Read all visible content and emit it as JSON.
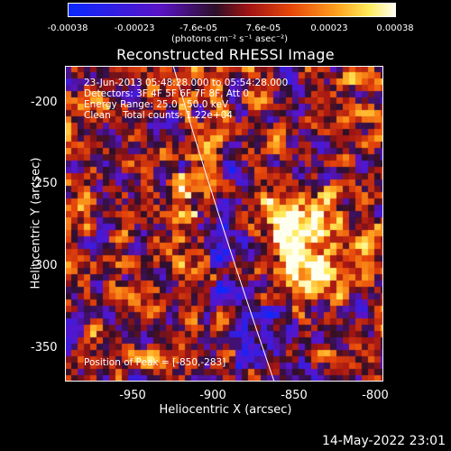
{
  "colorbar": {
    "ticks": [
      "-0.00038",
      "-0.00023",
      "-7.6e-05",
      "7.6e-05",
      "0.00023",
      "0.00038"
    ],
    "unit_label": "(photons cm⁻² s⁻¹ asec⁻²)"
  },
  "title": "Reconstructed RHESSI Image",
  "annotations": {
    "time_range": "23-Jun-2013 05:48:28.000 to 05:54:28.000",
    "detectors": "Detectors: 3F 4F 5F 6F 7F 8F, Att 0",
    "energy": "Energy Range: 25.0 - 50.0 keV",
    "clean": "Clean    Total counts: 1.22e+04",
    "peak": "Position of Peak = [-850,-283]"
  },
  "axes": {
    "xlabel": "Heliocentric X (arcsec)",
    "ylabel": "Heliocentric Y (arcsec)",
    "xticks": [
      "-950",
      "-900",
      "-850",
      "-800"
    ],
    "yticks": [
      "-200",
      "-250",
      "-300",
      "-350"
    ]
  },
  "timestamp": "14-May-2022 23:01"
}
